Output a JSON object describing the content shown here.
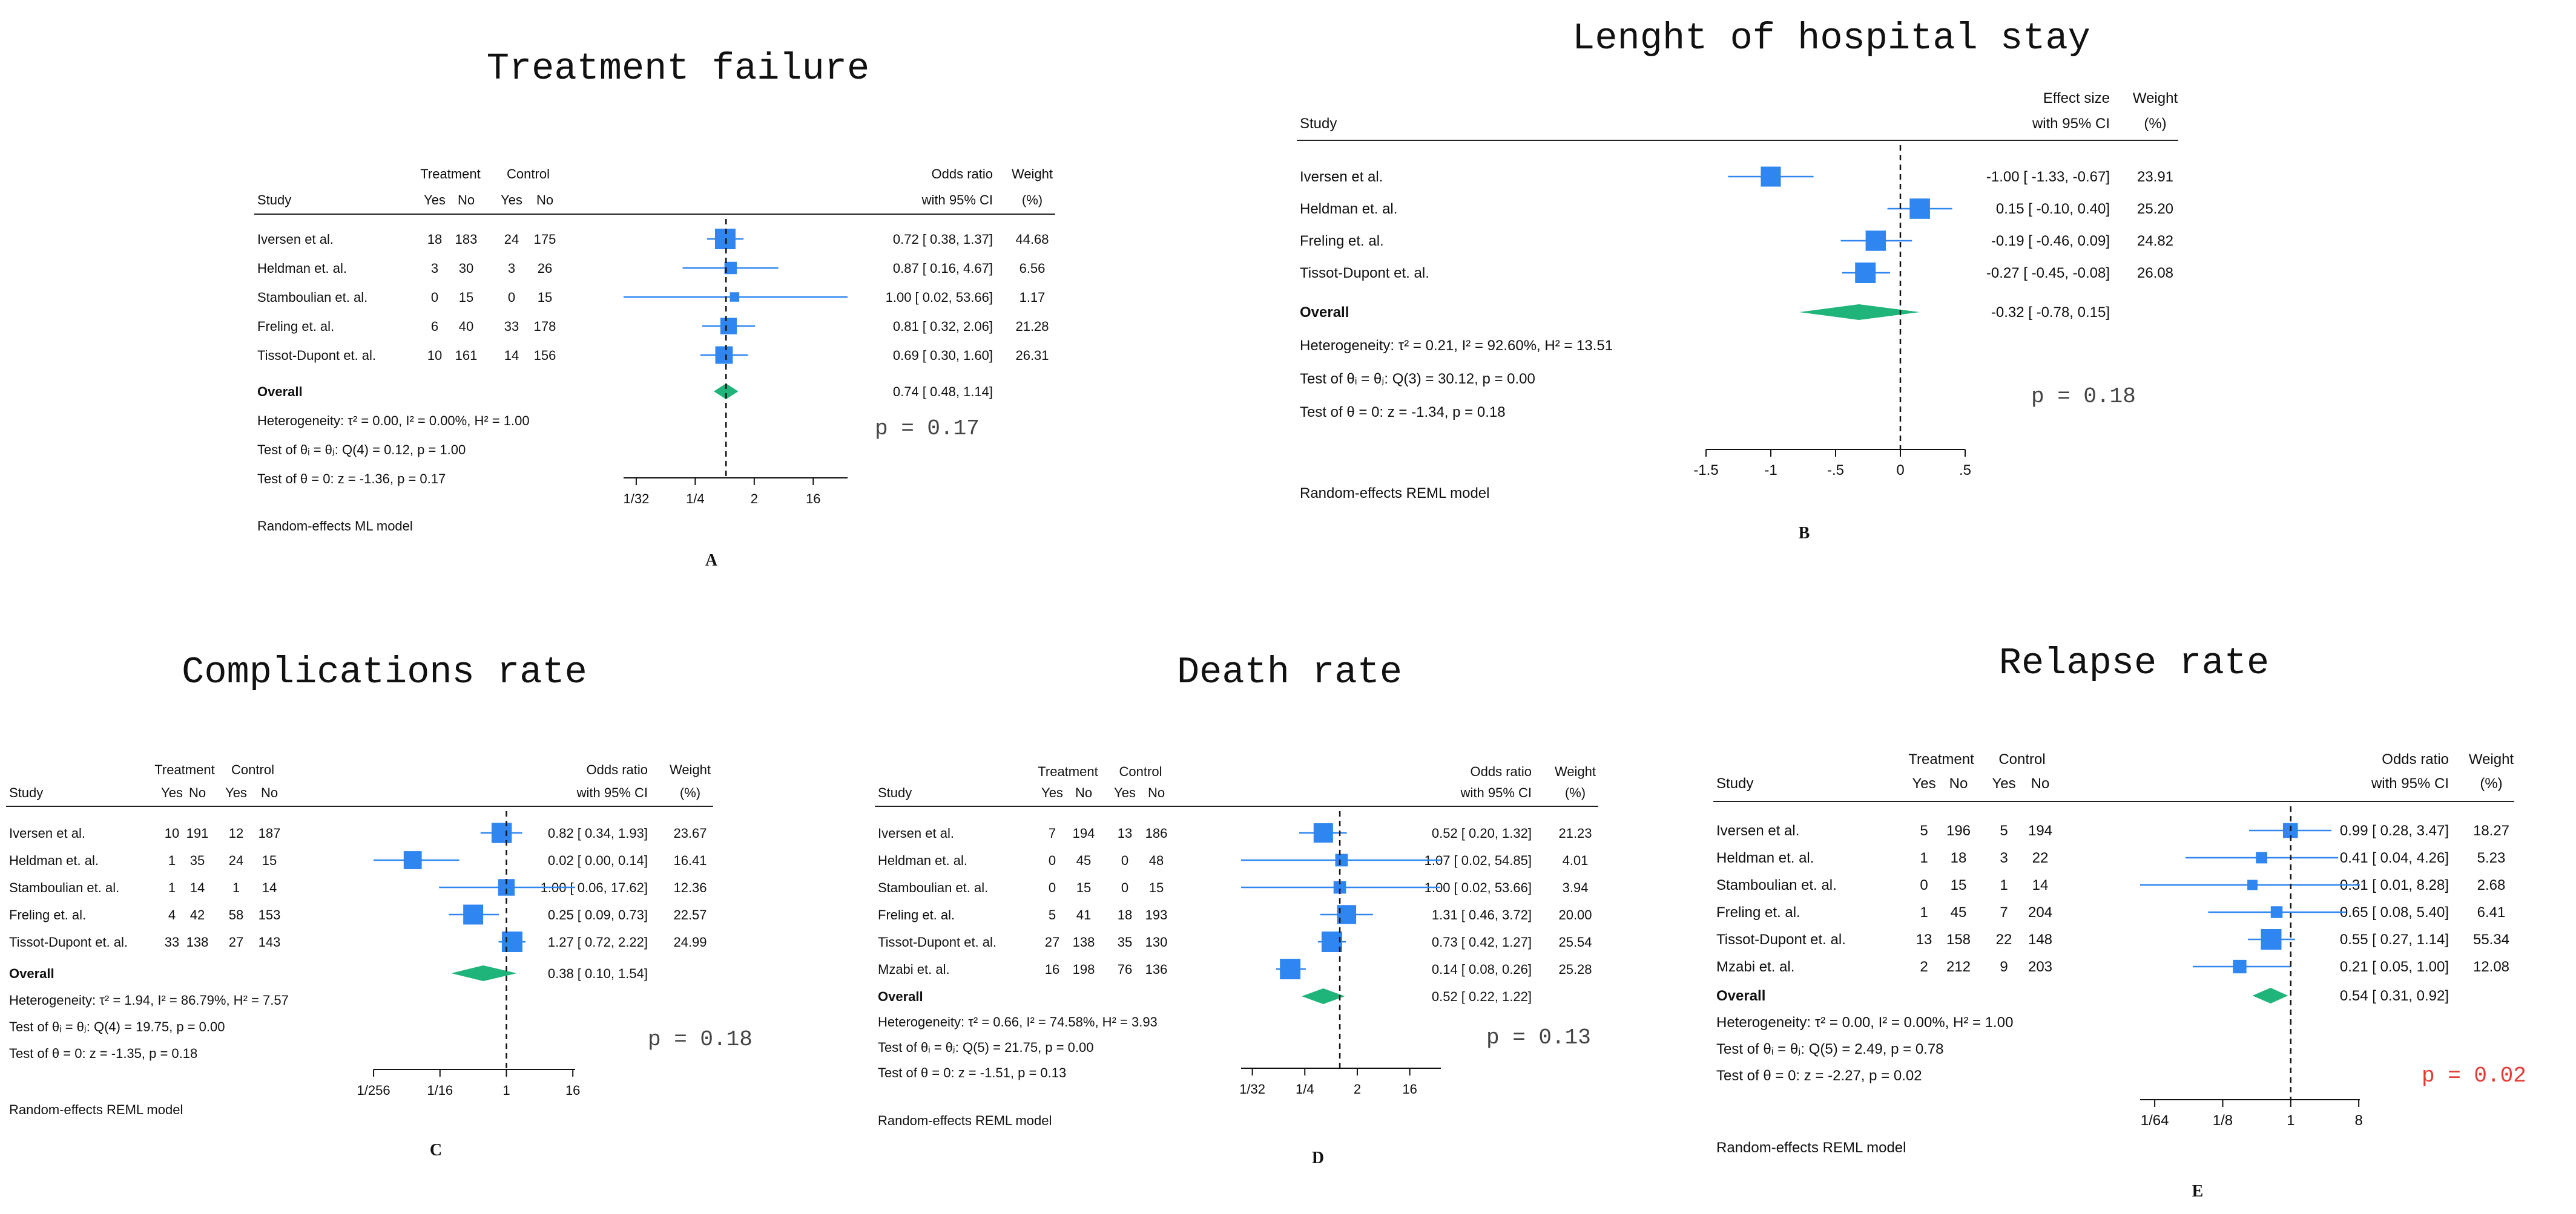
{
  "colors": {
    "square": "#2f86f0",
    "line": "#2f86f0",
    "diamond": "#1fb47a",
    "text": "#111111",
    "p_red": "#e53935",
    "p_gray": "#444444"
  },
  "chart_data": [
    {
      "id": "A",
      "type": "forest",
      "title": "Treatment failure",
      "label": "A",
      "scale": "log2",
      "effect_header": [
        "Odds ratio",
        "with 95% CI"
      ],
      "weight_header": [
        "Weight",
        "(%)"
      ],
      "has_counts": true,
      "group_headers": [
        "Treatment",
        "Control"
      ],
      "sub_headers": [
        "Yes",
        "No",
        "Yes",
        "No"
      ],
      "study_header": "Study",
      "studies": [
        {
          "name": "Iversen et al.",
          "counts": [
            "18",
            "183",
            "24",
            "175"
          ],
          "es": 0.72,
          "lo": 0.38,
          "hi": 1.37,
          "ci_text": "0.72 [ 0.38,   1.37]",
          "weight": "44.68"
        },
        {
          "name": "Heldman et. al.",
          "counts": [
            "3",
            "30",
            "3",
            "26"
          ],
          "es": 0.87,
          "lo": 0.16,
          "hi": 4.67,
          "ci_text": "0.87 [ 0.16,   4.67]",
          "weight": "6.56"
        },
        {
          "name": "Stamboulian et. al.",
          "counts": [
            "0",
            "15",
            "0",
            "15"
          ],
          "es": 1.0,
          "lo": 0.02,
          "hi": 53.66,
          "ci_text": "1.00 [ 0.02, 53.66]",
          "weight": "1.17"
        },
        {
          "name": "Freling et. al.",
          "counts": [
            "6",
            "40",
            "33",
            "178"
          ],
          "es": 0.81,
          "lo": 0.32,
          "hi": 2.06,
          "ci_text": "0.81 [ 0.32,   2.06]",
          "weight": "21.28"
        },
        {
          "name": "Tissot-Dupont et. al.",
          "counts": [
            "10",
            "161",
            "14",
            "156"
          ],
          "es": 0.69,
          "lo": 0.3,
          "hi": 1.6,
          "ci_text": "0.69 [ 0.30,   1.60]",
          "weight": "26.31"
        }
      ],
      "overall": {
        "label": "Overall",
        "es": 0.74,
        "lo": 0.48,
        "hi": 1.14,
        "ci_text": "0.74 [ 0.48,   1.14]"
      },
      "heterogeneity": "Heterogeneity: τ² = 0.00, I² = 0.00%, H² = 1.00",
      "test_q": "Test of θᵢ = θⱼ: Q(4) = 0.12, p = 1.00",
      "test_z": "Test of θ = 0: z = -1.36, p = 0.17",
      "model": "Random-effects ML model",
      "ticks": [
        {
          "v": 0.03125,
          "label": "1/32"
        },
        {
          "v": 0.25,
          "label": "1/4"
        },
        {
          "v": 2,
          "label": "2"
        },
        {
          "v": 16,
          "label": "16"
        }
      ],
      "axis_range": [
        0.02,
        53.66
      ],
      "ref_line": 0.74,
      "p_annotation": "p = 0.17",
      "p_color": "p_gray"
    },
    {
      "id": "B",
      "type": "forest",
      "title": "Lenght of hospital stay",
      "label": "B",
      "scale": "linear",
      "effect_header": [
        "Effect size",
        "with 95% CI"
      ],
      "weight_header": [
        "Weight",
        "(%)"
      ],
      "has_counts": false,
      "study_header": "Study",
      "studies": [
        {
          "name": "Iversen et al.",
          "es": -1.0,
          "lo": -1.33,
          "hi": -0.67,
          "ci_text": "-1.00 [ -1.33, -0.67]",
          "weight": "23.91"
        },
        {
          "name": "Heldman et. al.",
          "es": 0.15,
          "lo": -0.1,
          "hi": 0.4,
          "ci_text": "0.15 [ -0.10,  0.40]",
          "weight": "25.20"
        },
        {
          "name": "Freling et. al.",
          "es": -0.19,
          "lo": -0.46,
          "hi": 0.09,
          "ci_text": "-0.19 [ -0.46,  0.09]",
          "weight": "24.82"
        },
        {
          "name": "Tissot-Dupont et. al.",
          "es": -0.27,
          "lo": -0.45,
          "hi": -0.08,
          "ci_text": "-0.27 [ -0.45, -0.08]",
          "weight": "26.08"
        }
      ],
      "overall": {
        "label": "Overall",
        "es": -0.32,
        "lo": -0.78,
        "hi": 0.15,
        "ci_text": "-0.32 [ -0.78,  0.15]"
      },
      "heterogeneity": "Heterogeneity: τ² = 0.21, I² = 92.60%, H² = 13.51",
      "test_q": "Test of θᵢ = θⱼ: Q(3) = 30.12, p = 0.00",
      "test_z": "Test of θ = 0: z = -1.34, p = 0.18",
      "model": "Random-effects REML model",
      "ticks": [
        {
          "v": -1.5,
          "label": "-1.5"
        },
        {
          "v": -1,
          "label": "-1"
        },
        {
          "v": -0.5,
          "label": "-.5"
        },
        {
          "v": 0,
          "label": "0"
        },
        {
          "v": 0.5,
          "label": ".5"
        }
      ],
      "axis_range": [
        -1.5,
        0.5
      ],
      "ref_line": 0,
      "p_annotation": "p = 0.18",
      "p_color": "p_gray"
    },
    {
      "id": "C",
      "type": "forest",
      "title": "Complications rate",
      "label": "C",
      "scale": "log2",
      "effect_header": [
        "Odds ratio",
        "with 95% CI"
      ],
      "weight_header": [
        "Weight",
        "(%)"
      ],
      "has_counts": true,
      "group_headers": [
        "Treatment",
        "Control"
      ],
      "sub_headers": [
        "Yes",
        "No",
        "Yes",
        "No"
      ],
      "study_header": "Study",
      "studies": [
        {
          "name": "Iversen et al.",
          "counts": [
            "10",
            "191",
            "12",
            "187"
          ],
          "es": 0.82,
          "lo": 0.34,
          "hi": 1.93,
          "ci_text": "0.82 [ 0.34,   1.93]",
          "weight": "23.67"
        },
        {
          "name": "Heldman et. al.",
          "counts": [
            "1",
            "35",
            "24",
            "15"
          ],
          "es": 0.02,
          "lo": 0.0,
          "hi": 0.14,
          "ci_text": "0.02 [ 0.00,   0.14]",
          "weight": "16.41"
        },
        {
          "name": "Stamboulian et. al.",
          "counts": [
            "1",
            "14",
            "1",
            "14"
          ],
          "es": 1.0,
          "lo": 0.06,
          "hi": 17.62,
          "ci_text": "1.00 [ 0.06, 17.62]",
          "weight": "12.36"
        },
        {
          "name": "Freling et. al.",
          "counts": [
            "4",
            "42",
            "58",
            "153"
          ],
          "es": 0.25,
          "lo": 0.09,
          "hi": 0.73,
          "ci_text": "0.25 [ 0.09,   0.73]",
          "weight": "22.57"
        },
        {
          "name": "Tissot-Dupont et. al.",
          "counts": [
            "33",
            "138",
            "27",
            "143"
          ],
          "es": 1.27,
          "lo": 0.72,
          "hi": 2.22,
          "ci_text": "1.27 [ 0.72,   2.22]",
          "weight": "24.99"
        }
      ],
      "overall": {
        "label": "Overall",
        "es": 0.38,
        "lo": 0.1,
        "hi": 1.54,
        "ci_text": "0.38 [ 0.10,   1.54]"
      },
      "heterogeneity": "Heterogeneity: τ² = 1.94, I² = 86.79%, H² = 7.57",
      "test_q": "Test of θᵢ = θⱼ: Q(4) = 19.75, p = 0.00",
      "test_z": "Test of θ = 0: z = -1.35, p = 0.18",
      "model": "Random-effects REML model",
      "ticks": [
        {
          "v": 0.00390625,
          "label": "1/256"
        },
        {
          "v": 0.0625,
          "label": "1/16"
        },
        {
          "v": 1,
          "label": "1"
        },
        {
          "v": 16,
          "label": "16"
        }
      ],
      "axis_range": [
        0.0039,
        17.62
      ],
      "ref_line": 1,
      "p_annotation": "p = 0.18",
      "p_color": "p_gray"
    },
    {
      "id": "D",
      "type": "forest",
      "title": "Death rate",
      "label": "D",
      "scale": "log2",
      "effect_header": [
        "Odds ratio",
        "with 95% CI"
      ],
      "weight_header": [
        "Weight",
        "(%)"
      ],
      "has_counts": true,
      "group_headers": [
        "Treatment",
        "Control"
      ],
      "sub_headers": [
        "Yes",
        "No",
        "Yes",
        "No"
      ],
      "study_header": "Study",
      "studies": [
        {
          "name": "Iversen et al.",
          "counts": [
            "7",
            "194",
            "13",
            "186"
          ],
          "es": 0.52,
          "lo": 0.2,
          "hi": 1.32,
          "ci_text": "0.52 [ 0.20,   1.32]",
          "weight": "21.23"
        },
        {
          "name": "Heldman et. al.",
          "counts": [
            "0",
            "45",
            "0",
            "48"
          ],
          "es": 1.07,
          "lo": 0.02,
          "hi": 54.85,
          "ci_text": "1.07 [ 0.02, 54.85]",
          "weight": "4.01"
        },
        {
          "name": "Stamboulian et. al.",
          "counts": [
            "0",
            "15",
            "0",
            "15"
          ],
          "es": 1.0,
          "lo": 0.02,
          "hi": 53.66,
          "ci_text": "1.00 [ 0.02, 53.66]",
          "weight": "3.94"
        },
        {
          "name": "Freling et. al.",
          "counts": [
            "5",
            "41",
            "18",
            "193"
          ],
          "es": 1.31,
          "lo": 0.46,
          "hi": 3.72,
          "ci_text": "1.31 [ 0.46,   3.72]",
          "weight": "20.00"
        },
        {
          "name": "Tissot-Dupont et. al.",
          "counts": [
            "27",
            "138",
            "35",
            "130"
          ],
          "es": 0.73,
          "lo": 0.42,
          "hi": 1.27,
          "ci_text": "0.73 [ 0.42,   1.27]",
          "weight": "25.54"
        },
        {
          "name": "Mzabi et. al.",
          "counts": [
            "16",
            "198",
            "76",
            "136"
          ],
          "es": 0.14,
          "lo": 0.08,
          "hi": 0.26,
          "ci_text": "0.14 [ 0.08,   0.26]",
          "weight": "25.28"
        }
      ],
      "overall": {
        "label": "Overall",
        "es": 0.52,
        "lo": 0.22,
        "hi": 1.22,
        "ci_text": "0.52 [ 0.22,   1.22]"
      },
      "heterogeneity": "Heterogeneity: τ² = 0.66, I² = 74.58%, H² = 3.93",
      "test_q": "Test of θᵢ = θⱼ: Q(5) = 21.75, p = 0.00",
      "test_z": "Test of θ = 0: z = -1.51, p = 0.13",
      "model": "Random-effects REML model",
      "ticks": [
        {
          "v": 0.03125,
          "label": "1/32"
        },
        {
          "v": 0.25,
          "label": "1/4"
        },
        {
          "v": 2,
          "label": "2"
        },
        {
          "v": 16,
          "label": "16"
        }
      ],
      "axis_range": [
        0.02,
        54.85
      ],
      "ref_line": 1,
      "p_annotation": "p = 0.13",
      "p_color": "p_gray"
    },
    {
      "id": "E",
      "type": "forest",
      "title": "Relapse rate",
      "label": "E",
      "scale": "log2",
      "effect_header": [
        "Odds ratio",
        "with 95% CI"
      ],
      "weight_header": [
        "Weight",
        "(%)"
      ],
      "has_counts": true,
      "group_headers": [
        "Treatment",
        "Control"
      ],
      "sub_headers": [
        "Yes",
        "No",
        "Yes",
        "No"
      ],
      "study_header": "Study",
      "studies": [
        {
          "name": "Iversen et al.",
          "counts": [
            "5",
            "196",
            "5",
            "194"
          ],
          "es": 0.99,
          "lo": 0.28,
          "hi": 3.47,
          "ci_text": "0.99 [ 0.28, 3.47]",
          "weight": "18.27"
        },
        {
          "name": "Heldman et. al.",
          "counts": [
            "1",
            "18",
            "3",
            "22"
          ],
          "es": 0.41,
          "lo": 0.04,
          "hi": 4.26,
          "ci_text": "0.41 [ 0.04, 4.26]",
          "weight": "5.23"
        },
        {
          "name": "Stamboulian et. al.",
          "counts": [
            "0",
            "15",
            "1",
            "14"
          ],
          "es": 0.31,
          "lo": 0.01,
          "hi": 8.28,
          "ci_text": "0.31 [ 0.01, 8.28]",
          "weight": "2.68"
        },
        {
          "name": "Freling et. al.",
          "counts": [
            "1",
            "45",
            "7",
            "204"
          ],
          "es": 0.65,
          "lo": 0.08,
          "hi": 5.4,
          "ci_text": "0.65 [ 0.08, 5.40]",
          "weight": "6.41"
        },
        {
          "name": "Tissot-Dupont et. al.",
          "counts": [
            "13",
            "158",
            "22",
            "148"
          ],
          "es": 0.55,
          "lo": 0.27,
          "hi": 1.14,
          "ci_text": "0.55 [ 0.27, 1.14]",
          "weight": "55.34"
        },
        {
          "name": "Mzabi et. al.",
          "counts": [
            "2",
            "212",
            "9",
            "203"
          ],
          "es": 0.21,
          "lo": 0.05,
          "hi": 1.0,
          "ci_text": "0.21 [ 0.05, 1.00]",
          "weight": "12.08"
        }
      ],
      "overall": {
        "label": "Overall",
        "es": 0.54,
        "lo": 0.31,
        "hi": 0.92,
        "ci_text": "0.54 [ 0.31, 0.92]"
      },
      "heterogeneity": "Heterogeneity: τ² = 0.00, I² = 0.00%, H² = 1.00",
      "test_q": "Test of θᵢ = θⱼ: Q(5) = 2.49, p = 0.78",
      "test_z": "Test of θ = 0: z = -2.27, p = 0.02",
      "model": "Random-effects REML model",
      "ticks": [
        {
          "v": 0.015625,
          "label": "1/64"
        },
        {
          "v": 0.125,
          "label": "1/8"
        },
        {
          "v": 1,
          "label": "1"
        },
        {
          "v": 8,
          "label": "8"
        }
      ],
      "axis_range": [
        0.01,
        8.28
      ],
      "ref_line": 1,
      "p_annotation": "p = 0.02",
      "p_color": "p_red"
    }
  ]
}
